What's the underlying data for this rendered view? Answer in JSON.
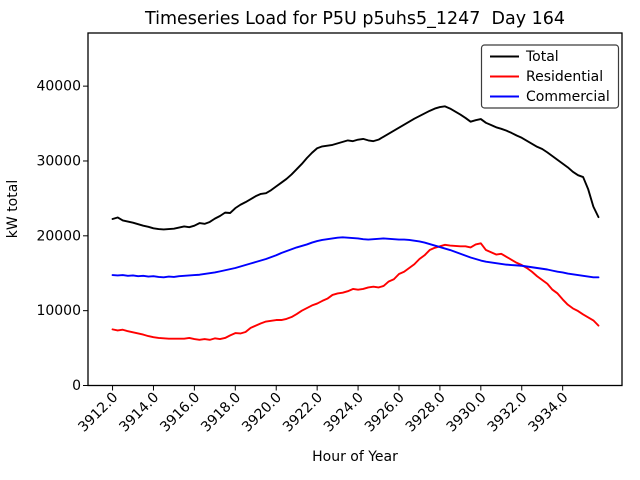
{
  "window": {
    "background": "#ffffff"
  },
  "chart_data": {
    "type": "line",
    "title": "Timeseries Load for P5U p5uhs5_1247  Day 164",
    "xlabel": "Hour of Year",
    "ylabel": "kW total",
    "xlim": [
      3910.8,
      3936.9
    ],
    "ylim": [
      0,
      47100
    ],
    "grid": false,
    "legend_position": "upper right",
    "xticks": [
      {
        "v": 3912,
        "label": "3912.0"
      },
      {
        "v": 3914,
        "label": "3914.0"
      },
      {
        "v": 3916,
        "label": "3916.0"
      },
      {
        "v": 3918,
        "label": "3918.0"
      },
      {
        "v": 3920,
        "label": "3920.0"
      },
      {
        "v": 3922,
        "label": "3922.0"
      },
      {
        "v": 3924,
        "label": "3924.0"
      },
      {
        "v": 3926,
        "label": "3926.0"
      },
      {
        "v": 3928,
        "label": "3928.0"
      },
      {
        "v": 3930,
        "label": "3930.0"
      },
      {
        "v": 3932,
        "label": "3932.0"
      },
      {
        "v": 3934,
        "label": "3934.0"
      }
    ],
    "yticks": [
      {
        "v": 0,
        "label": "0"
      },
      {
        "v": 10000,
        "label": "10000"
      },
      {
        "v": 20000,
        "label": "20000"
      },
      {
        "v": 30000,
        "label": "30000"
      },
      {
        "v": 40000,
        "label": "40000"
      }
    ],
    "x": [
      3912.0,
      3912.25,
      3912.5,
      3912.75,
      3913.0,
      3913.25,
      3913.5,
      3913.75,
      3914.0,
      3914.25,
      3914.5,
      3914.75,
      3915.0,
      3915.25,
      3915.5,
      3915.75,
      3916.0,
      3916.25,
      3916.5,
      3916.75,
      3917.0,
      3917.25,
      3917.5,
      3917.75,
      3918.0,
      3918.25,
      3918.5,
      3918.75,
      3919.0,
      3919.25,
      3919.5,
      3919.75,
      3920.0,
      3920.25,
      3920.5,
      3920.75,
      3921.0,
      3921.25,
      3921.5,
      3921.75,
      3922.0,
      3922.25,
      3922.5,
      3922.75,
      3923.0,
      3923.25,
      3923.5,
      3923.75,
      3924.0,
      3924.25,
      3924.5,
      3924.75,
      3925.0,
      3925.25,
      3925.5,
      3925.75,
      3926.0,
      3926.25,
      3926.5,
      3926.75,
      3927.0,
      3927.25,
      3927.5,
      3927.75,
      3928.0,
      3928.25,
      3928.5,
      3928.75,
      3929.0,
      3929.25,
      3929.5,
      3929.75,
      3930.0,
      3930.25,
      3930.5,
      3930.75,
      3931.0,
      3931.25,
      3931.5,
      3931.75,
      3932.0,
      3932.25,
      3932.5,
      3932.75,
      3933.0,
      3933.25,
      3933.5,
      3933.75,
      3934.0,
      3934.25,
      3934.5,
      3934.75,
      3935.0,
      3935.25,
      3935.5,
      3935.75
    ],
    "series": [
      {
        "name": "Total",
        "color": "#000000",
        "values": [
          22250,
          22450,
          22050,
          21900,
          21750,
          21550,
          21350,
          21200,
          21000,
          20900,
          20850,
          20900,
          20950,
          21100,
          21250,
          21150,
          21350,
          21700,
          21600,
          21850,
          22300,
          22650,
          23100,
          23050,
          23700,
          24150,
          24500,
          24900,
          25300,
          25600,
          25700,
          26100,
          26600,
          27100,
          27600,
          28200,
          28900,
          29600,
          30400,
          31100,
          31700,
          31950,
          32050,
          32150,
          32350,
          32550,
          32750,
          32650,
          32850,
          32950,
          32750,
          32650,
          32850,
          33250,
          33650,
          34050,
          34450,
          34850,
          35250,
          35650,
          36000,
          36350,
          36700,
          37000,
          37200,
          37300,
          37000,
          36600,
          36200,
          35750,
          35250,
          35450,
          35600,
          35100,
          34800,
          34500,
          34300,
          34050,
          33750,
          33400,
          33100,
          32700,
          32300,
          31900,
          31600,
          31150,
          30650,
          30150,
          29650,
          29150,
          28550,
          28100,
          27850,
          26200,
          23900,
          22500
        ]
      },
      {
        "name": "Residential",
        "color": "#ff0000",
        "values": [
          7500,
          7350,
          7450,
          7250,
          7100,
          6950,
          6800,
          6600,
          6450,
          6350,
          6300,
          6250,
          6250,
          6250,
          6250,
          6350,
          6200,
          6100,
          6200,
          6100,
          6300,
          6200,
          6350,
          6700,
          7000,
          6950,
          7150,
          7700,
          8000,
          8300,
          8550,
          8650,
          8750,
          8750,
          8900,
          9150,
          9550,
          10000,
          10350,
          10700,
          10950,
          11300,
          11600,
          12100,
          12300,
          12400,
          12600,
          12900,
          12800,
          12900,
          13100,
          13200,
          13100,
          13300,
          13900,
          14200,
          14900,
          15200,
          15700,
          16200,
          16900,
          17400,
          18100,
          18400,
          18600,
          18800,
          18700,
          18650,
          18600,
          18600,
          18450,
          18850,
          19000,
          18100,
          17800,
          17500,
          17600,
          17200,
          16800,
          16400,
          16100,
          15700,
          15200,
          14600,
          14100,
          13600,
          12800,
          12300,
          11500,
          10800,
          10300,
          9950,
          9500,
          9100,
          8700,
          8000
        ]
      },
      {
        "name": "Commercial",
        "color": "#0000ff",
        "values": [
          14750,
          14700,
          14750,
          14650,
          14700,
          14600,
          14650,
          14550,
          14600,
          14500,
          14450,
          14550,
          14500,
          14600,
          14650,
          14700,
          14750,
          14800,
          14900,
          15000,
          15100,
          15250,
          15400,
          15550,
          15700,
          15900,
          16100,
          16300,
          16500,
          16700,
          16900,
          17150,
          17400,
          17700,
          17950,
          18200,
          18450,
          18650,
          18850,
          19100,
          19300,
          19450,
          19550,
          19650,
          19750,
          19800,
          19750,
          19700,
          19650,
          19550,
          19500,
          19550,
          19600,
          19650,
          19600,
          19550,
          19500,
          19500,
          19450,
          19350,
          19250,
          19100,
          18900,
          18700,
          18500,
          18300,
          18100,
          17850,
          17600,
          17350,
          17100,
          16900,
          16700,
          16550,
          16450,
          16350,
          16250,
          16150,
          16100,
          16050,
          16000,
          15900,
          15800,
          15700,
          15600,
          15500,
          15350,
          15200,
          15100,
          14950,
          14850,
          14750,
          14650,
          14550,
          14450,
          14450
        ]
      }
    ]
  }
}
